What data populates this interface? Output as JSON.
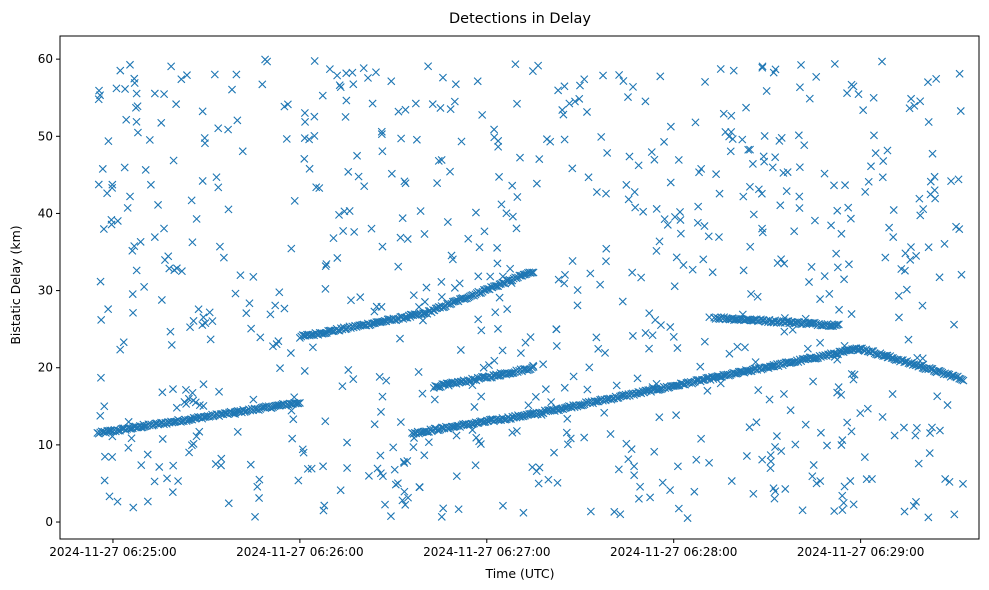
{
  "chart_data": {
    "type": "scatter",
    "title": "Detections in Delay",
    "xlabel": "Time (UTC)",
    "ylabel": "Bistatic Delay (km)",
    "marker": "x",
    "color": "#1f77b4",
    "xlim_seconds_after_06_24_00": [
      43,
      338
    ],
    "ylim": [
      -2.2,
      63
    ],
    "x_ticks": [
      {
        "label": "2024-11-27 06:25:00",
        "t": 60
      },
      {
        "label": "2024-11-27 06:26:00",
        "t": 120
      },
      {
        "label": "2024-11-27 06:27:00",
        "t": 180
      },
      {
        "label": "2024-11-27 06:28:00",
        "t": 240
      },
      {
        "label": "2024-11-27 06:29:00",
        "t": 300
      }
    ],
    "y_ticks": [
      0,
      10,
      20,
      30,
      40,
      50,
      60
    ],
    "tracks": [
      {
        "name": "track-1",
        "t_start": 55,
        "t_end": 120,
        "delay_start": 11.5,
        "delay_end": 15.5
      },
      {
        "name": "track-2",
        "t_start": 120,
        "t_end": 160,
        "delay_start": 24,
        "delay_end": 27
      },
      {
        "name": "track-3",
        "t_start": 160,
        "t_end": 195,
        "delay_start": 27,
        "delay_end": 32.5
      },
      {
        "name": "track-4",
        "t_start": 163,
        "t_end": 183,
        "delay_start": 17.5,
        "delay_end": 19
      },
      {
        "name": "track-5",
        "t_start": 183,
        "t_end": 195,
        "delay_start": 19,
        "delay_end": 20
      },
      {
        "name": "track-6",
        "t_start": 156,
        "t_end": 195,
        "delay_start": 11.5,
        "delay_end": 14
      },
      {
        "name": "track-7",
        "t_start": 195,
        "t_end": 300,
        "delay_start": 14,
        "delay_end": 22.5
      },
      {
        "name": "track-8",
        "t_start": 253,
        "t_end": 293,
        "delay_start": 26.5,
        "delay_end": 25.5
      },
      {
        "name": "track-9",
        "t_start": 300,
        "t_end": 333,
        "delay_start": 22.5,
        "delay_end": 18.5
      }
    ],
    "clutter_points": 760
  }
}
